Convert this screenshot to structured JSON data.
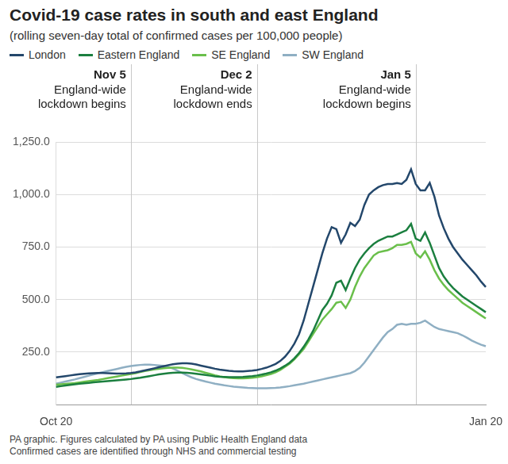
{
  "chart_data": {
    "type": "line",
    "title": "Covid-19 case rates in south and east England",
    "subtitle": "(rolling seven-day total of confirmed cases per 100,000 people)",
    "legend": "top",
    "grid": true,
    "categories": [
      "Oct 20",
      null,
      null,
      null,
      null,
      null,
      null,
      null,
      null,
      null,
      null,
      null,
      null,
      null,
      null,
      null,
      null,
      null,
      null,
      null,
      null,
      null,
      null,
      null,
      null,
      null,
      null,
      null,
      null,
      null,
      null,
      null,
      null,
      null,
      null,
      null,
      null,
      null,
      null,
      null,
      null,
      null,
      null,
      null,
      null,
      null,
      null,
      null,
      null,
      null,
      null,
      null,
      null,
      null,
      null,
      null,
      null,
      null,
      null,
      null,
      null,
      null,
      null,
      null,
      null,
      null,
      null,
      null,
      null,
      null,
      null,
      null,
      null,
      null,
      null,
      null,
      null,
      null,
      null,
      null,
      null,
      null,
      null,
      null,
      null,
      null,
      null,
      null,
      null,
      null,
      null,
      null,
      "Jan 20"
    ],
    "ylim": [
      0,
      1250
    ],
    "yticks": [
      {
        "value": 250,
        "label": "250.0"
      },
      {
        "value": 500,
        "label": "500.0"
      },
      {
        "value": 750,
        "label": "750.0"
      },
      {
        "value": 1000,
        "label": "1,000.0"
      },
      {
        "value": 1250,
        "label": "1,250.0"
      }
    ],
    "series": [
      {
        "name": "London",
        "color": "#23476b",
        "values": [
          130,
          133,
          136,
          139,
          142,
          145,
          147,
          149,
          150,
          151,
          151,
          150,
          149,
          148,
          148,
          149,
          151,
          154,
          158,
          163,
          168,
          173,
          178,
          183,
          188,
          192,
          195,
          197,
          197,
          195,
          191,
          186,
          181,
          176,
          171,
          167,
          164,
          161,
          159,
          158,
          158,
          160,
          162,
          165,
          170,
          176,
          184,
          194,
          208,
          228,
          255,
          290,
          335,
          400,
          480,
          560,
          640,
          720,
          790,
          845,
          835,
          770,
          810,
          865,
          850,
          880,
          950,
          1000,
          1020,
          1035,
          1045,
          1050,
          1050,
          1055,
          1050,
          1070,
          1120,
          1050,
          1020,
          1020,
          1055,
          990,
          900,
          840,
          790,
          750,
          720,
          690,
          665,
          640,
          615,
          585,
          560
        ]
      },
      {
        "name": "Eastern England",
        "color": "#1b7f3f",
        "values": [
          85,
          88,
          91,
          94,
          97,
          100,
          102,
          104,
          106,
          108,
          110,
          112,
          114,
          116,
          118,
          120,
          122,
          125,
          128,
          132,
          136,
          140,
          144,
          147,
          150,
          152,
          153,
          153,
          152,
          150,
          147,
          144,
          141,
          138,
          135,
          133,
          132,
          131,
          131,
          131,
          132,
          134,
          136,
          139,
          143,
          148,
          154,
          162,
          172,
          185,
          200,
          220,
          245,
          275,
          310,
          350,
          400,
          450,
          480,
          520,
          580,
          590,
          545,
          600,
          650,
          690,
          720,
          745,
          765,
          780,
          790,
          800,
          800,
          810,
          820,
          830,
          860,
          790,
          780,
          820,
          770,
          710,
          650,
          610,
          580,
          555,
          535,
          515,
          500,
          485,
          470,
          455,
          440
        ]
      },
      {
        "name": "SE England",
        "color": "#6abf4b",
        "values": [
          95,
          97,
          99,
          101,
          103,
          106,
          109,
          112,
          115,
          118,
          122,
          126,
          130,
          134,
          138,
          142,
          146,
          150,
          155,
          160,
          164,
          168,
          171,
          173,
          175,
          176,
          176,
          175,
          172,
          168,
          163,
          158,
          152,
          146,
          140,
          135,
          131,
          128,
          126,
          125,
          125,
          126,
          128,
          131,
          135,
          140,
          146,
          154,
          165,
          180,
          195,
          215,
          240,
          265,
          300,
          335,
          370,
          405,
          430,
          455,
          485,
          490,
          460,
          500,
          560,
          610,
          650,
          680,
          710,
          725,
          730,
          735,
          745,
          760,
          760,
          765,
          775,
          720,
          700,
          730,
          690,
          640,
          600,
          570,
          545,
          525,
          505,
          485,
          470,
          455,
          440,
          425,
          410
        ]
      },
      {
        "name": "SW England",
        "color": "#8fafc3",
        "values": [
          100,
          105,
          110,
          115,
          120,
          126,
          132,
          138,
          144,
          150,
          155,
          160,
          165,
          170,
          175,
          180,
          184,
          187,
          189,
          190,
          190,
          189,
          187,
          185,
          180,
          172,
          162,
          150,
          140,
          130,
          122,
          116,
          110,
          105,
          100,
          96,
          92,
          89,
          86,
          84,
          82,
          80,
          79,
          78,
          78,
          78,
          79,
          80,
          82,
          85,
          88,
          92,
          96,
          100,
          105,
          110,
          115,
          120,
          125,
          130,
          135,
          140,
          145,
          150,
          160,
          175,
          200,
          230,
          260,
          290,
          320,
          345,
          360,
          380,
          385,
          380,
          385,
          385,
          390,
          400,
          385,
          370,
          360,
          355,
          350,
          345,
          340,
          330,
          318,
          305,
          295,
          285,
          278
        ]
      }
    ],
    "annotations": [
      {
        "x": 16,
        "label": "Nov 5",
        "text": [
          "England-wide",
          "lockdown begins"
        ]
      },
      {
        "x": 43,
        "label": "Dec 2",
        "text": [
          "England-wide",
          "lockdown ends"
        ]
      },
      {
        "x": 77,
        "label": "Jan 5",
        "text": [
          "England-wide",
          "lockdown begins"
        ]
      }
    ],
    "notes": [
      "PA graphic. Figures calculated by PA using Public Health England data",
      "Confirmed cases are identified through NHS and commercial testing"
    ]
  }
}
